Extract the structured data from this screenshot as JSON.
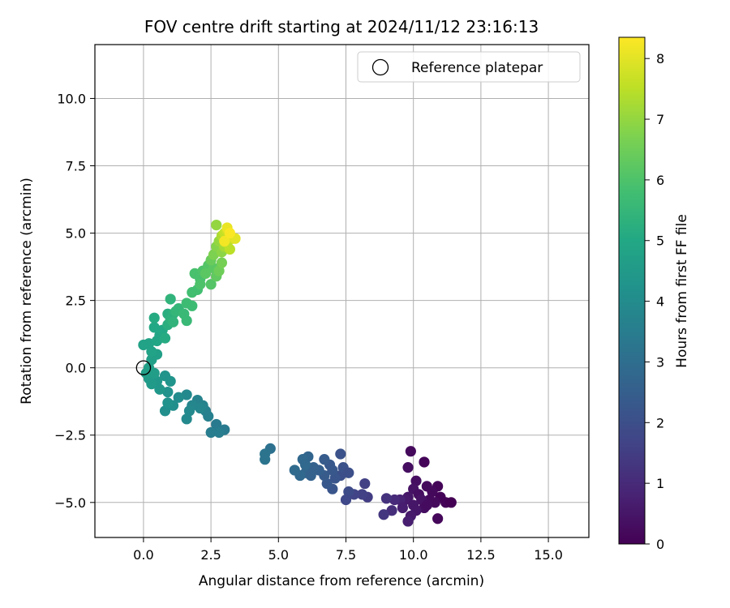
{
  "chart_data": {
    "type": "scatter",
    "title": "FOV centre drift starting at 2024/11/12 23:16:13",
    "xlabel": "Angular distance from reference (arcmin)",
    "ylabel": "Rotation from reference (arcmin)",
    "xlim": [
      -1.8,
      16.5
    ],
    "ylim": [
      -6.3,
      12.0
    ],
    "xticks": [
      0.0,
      2.5,
      5.0,
      7.5,
      10.0,
      12.5,
      15.0
    ],
    "xtick_labels": [
      "0.0",
      "2.5",
      "5.0",
      "7.5",
      "10.0",
      "12.5",
      "15.0"
    ],
    "yticks": [
      -5.0,
      -2.5,
      0.0,
      2.5,
      5.0,
      7.5,
      10.0
    ],
    "ytick_labels": [
      "−5.0",
      "−2.5",
      "0.0",
      "2.5",
      "5.0",
      "7.5",
      "10.0"
    ],
    "grid": true,
    "legend": {
      "placement": "upper-right",
      "entries": [
        "Reference platepar"
      ]
    },
    "reference_point": {
      "x": 0.0,
      "y": 0.0,
      "marker": "open-circle"
    },
    "colorbar": {
      "label": "Hours from first FF file",
      "colormap": "viridis",
      "range": [
        0,
        8.35
      ],
      "ticks": [
        0,
        1,
        2,
        3,
        4,
        5,
        6,
        7,
        8
      ],
      "tick_labels": [
        "0",
        "1",
        "2",
        "3",
        "4",
        "5",
        "6",
        "7",
        "8"
      ]
    },
    "points": [
      {
        "x": 9.9,
        "y": -3.1,
        "h": 0.2
      },
      {
        "x": 10.4,
        "y": -3.5,
        "h": 0.1
      },
      {
        "x": 9.8,
        "y": -3.7,
        "h": 0.3
      },
      {
        "x": 10.1,
        "y": -4.2,
        "h": 0.3
      },
      {
        "x": 10.5,
        "y": -4.4,
        "h": 0.2
      },
      {
        "x": 10.9,
        "y": -4.4,
        "h": 0.1
      },
      {
        "x": 10.0,
        "y": -4.5,
        "h": 0.4
      },
      {
        "x": 10.7,
        "y": -4.6,
        "h": 0.2
      },
      {
        "x": 10.2,
        "y": -4.7,
        "h": 0.3
      },
      {
        "x": 11.0,
        "y": -4.8,
        "h": 0.1
      },
      {
        "x": 9.8,
        "y": -4.8,
        "h": 0.5
      },
      {
        "x": 10.6,
        "y": -4.9,
        "h": 0.2
      },
      {
        "x": 10.3,
        "y": -4.9,
        "h": 0.4
      },
      {
        "x": 11.2,
        "y": -5.0,
        "h": 0.05
      },
      {
        "x": 11.4,
        "y": -5.0,
        "h": 0.0
      },
      {
        "x": 9.7,
        "y": -4.9,
        "h": 0.6
      },
      {
        "x": 10.0,
        "y": -5.1,
        "h": 0.5
      },
      {
        "x": 10.4,
        "y": -5.2,
        "h": 0.3
      },
      {
        "x": 10.8,
        "y": -5.0,
        "h": 0.2
      },
      {
        "x": 10.1,
        "y": -5.3,
        "h": 0.5
      },
      {
        "x": 9.9,
        "y": -5.5,
        "h": 0.6
      },
      {
        "x": 10.9,
        "y": -5.6,
        "h": 0.15
      },
      {
        "x": 9.8,
        "y": -5.7,
        "h": 0.7
      },
      {
        "x": 10.5,
        "y": -5.1,
        "h": 0.25
      },
      {
        "x": 9.5,
        "y": -4.9,
        "h": 0.8
      },
      {
        "x": 9.6,
        "y": -5.2,
        "h": 0.7
      },
      {
        "x": 9.3,
        "y": -4.9,
        "h": 1.0
      },
      {
        "x": 9.0,
        "y": -4.85,
        "h": 1.2
      },
      {
        "x": 9.2,
        "y": -5.3,
        "h": 1.1
      },
      {
        "x": 8.9,
        "y": -5.45,
        "h": 1.3
      },
      {
        "x": 8.3,
        "y": -4.8,
        "h": 1.5
      },
      {
        "x": 8.1,
        "y": -4.7,
        "h": 1.6
      },
      {
        "x": 7.8,
        "y": -4.7,
        "h": 1.7
      },
      {
        "x": 8.2,
        "y": -4.3,
        "h": 1.6
      },
      {
        "x": 7.6,
        "y": -4.6,
        "h": 1.9
      },
      {
        "x": 7.5,
        "y": -4.9,
        "h": 1.8
      },
      {
        "x": 7.3,
        "y": -4.0,
        "h": 2.0
      },
      {
        "x": 7.4,
        "y": -3.7,
        "h": 2.1
      },
      {
        "x": 7.6,
        "y": -3.9,
        "h": 2.0
      },
      {
        "x": 7.0,
        "y": -4.5,
        "h": 2.2
      },
      {
        "x": 6.8,
        "y": -4.3,
        "h": 2.3
      },
      {
        "x": 7.1,
        "y": -4.1,
        "h": 2.2
      },
      {
        "x": 6.7,
        "y": -4.0,
        "h": 2.4
      },
      {
        "x": 7.3,
        "y": -3.2,
        "h": 2.1
      },
      {
        "x": 6.9,
        "y": -3.6,
        "h": 2.3
      },
      {
        "x": 6.7,
        "y": -3.4,
        "h": 2.4
      },
      {
        "x": 7.0,
        "y": -3.8,
        "h": 2.3
      },
      {
        "x": 6.5,
        "y": -3.8,
        "h": 2.5
      },
      {
        "x": 6.3,
        "y": -3.7,
        "h": 2.6
      },
      {
        "x": 6.1,
        "y": -3.3,
        "h": 2.7
      },
      {
        "x": 5.9,
        "y": -3.4,
        "h": 2.8
      },
      {
        "x": 6.0,
        "y": -3.9,
        "h": 2.7
      },
      {
        "x": 5.8,
        "y": -4.0,
        "h": 2.8
      },
      {
        "x": 6.2,
        "y": -4.0,
        "h": 2.6
      },
      {
        "x": 5.6,
        "y": -3.8,
        "h": 2.9
      },
      {
        "x": 6.0,
        "y": -3.6,
        "h": 2.8
      },
      {
        "x": 4.7,
        "y": -3.0,
        "h": 3.1
      },
      {
        "x": 4.5,
        "y": -3.2,
        "h": 3.2
      },
      {
        "x": 4.5,
        "y": -3.4,
        "h": 3.2
      },
      {
        "x": 3.0,
        "y": -2.3,
        "h": 3.4
      },
      {
        "x": 2.7,
        "y": -2.1,
        "h": 3.4
      },
      {
        "x": 2.8,
        "y": -2.4,
        "h": 3.5
      },
      {
        "x": 2.5,
        "y": -2.4,
        "h": 3.5
      },
      {
        "x": 2.4,
        "y": -1.8,
        "h": 3.6
      },
      {
        "x": 2.3,
        "y": -1.6,
        "h": 3.6
      },
      {
        "x": 2.2,
        "y": -1.4,
        "h": 3.7
      },
      {
        "x": 2.0,
        "y": -1.2,
        "h": 3.7
      },
      {
        "x": 2.1,
        "y": -1.5,
        "h": 3.8
      },
      {
        "x": 1.8,
        "y": -1.4,
        "h": 3.8
      },
      {
        "x": 1.6,
        "y": -1.0,
        "h": 3.9
      },
      {
        "x": 1.7,
        "y": -1.6,
        "h": 3.9
      },
      {
        "x": 1.6,
        "y": -1.9,
        "h": 3.9
      },
      {
        "x": 1.3,
        "y": -1.1,
        "h": 4.0
      },
      {
        "x": 1.1,
        "y": -1.4,
        "h": 4.1
      },
      {
        "x": 0.9,
        "y": -0.9,
        "h": 4.2
      },
      {
        "x": 0.8,
        "y": -1.6,
        "h": 4.1
      },
      {
        "x": 0.9,
        "y": -1.3,
        "h": 4.2
      },
      {
        "x": 1.0,
        "y": -0.5,
        "h": 4.3
      },
      {
        "x": 0.8,
        "y": -0.3,
        "h": 4.3
      },
      {
        "x": 0.6,
        "y": -0.8,
        "h": 4.4
      },
      {
        "x": 0.5,
        "y": -0.5,
        "h": 4.4
      },
      {
        "x": 0.3,
        "y": -0.6,
        "h": 4.5
      },
      {
        "x": 0.2,
        "y": -0.4,
        "h": 4.5
      },
      {
        "x": 0.1,
        "y": -0.2,
        "h": 4.6
      },
      {
        "x": 0.4,
        "y": -0.2,
        "h": 4.6
      },
      {
        "x": 0.2,
        "y": 0.0,
        "h": 4.7
      },
      {
        "x": 0.3,
        "y": 0.3,
        "h": 4.7
      },
      {
        "x": 0.5,
        "y": 0.5,
        "h": 4.7
      },
      {
        "x": 0.3,
        "y": 0.6,
        "h": 4.8
      },
      {
        "x": 0.0,
        "y": 0.85,
        "h": 4.8
      },
      {
        "x": 0.2,
        "y": 0.9,
        "h": 4.8
      },
      {
        "x": 0.5,
        "y": 1.0,
        "h": 4.9
      },
      {
        "x": 0.6,
        "y": 1.2,
        "h": 4.9
      },
      {
        "x": 0.4,
        "y": 1.5,
        "h": 5.0
      },
      {
        "x": 0.7,
        "y": 1.4,
        "h": 5.0
      },
      {
        "x": 0.8,
        "y": 1.1,
        "h": 5.1
      },
      {
        "x": 0.4,
        "y": 1.85,
        "h": 5.1
      },
      {
        "x": 0.9,
        "y": 1.6,
        "h": 5.2
      },
      {
        "x": 0.9,
        "y": 2.0,
        "h": 5.2
      },
      {
        "x": 1.0,
        "y": 1.8,
        "h": 5.3
      },
      {
        "x": 1.1,
        "y": 2.0,
        "h": 5.3
      },
      {
        "x": 1.0,
        "y": 2.55,
        "h": 5.4
      },
      {
        "x": 1.1,
        "y": 1.7,
        "h": 5.4
      },
      {
        "x": 1.2,
        "y": 2.1,
        "h": 5.5
      },
      {
        "x": 1.3,
        "y": 2.2,
        "h": 5.5
      },
      {
        "x": 1.5,
        "y": 2.0,
        "h": 5.6
      },
      {
        "x": 1.6,
        "y": 1.75,
        "h": 5.6
      },
      {
        "x": 1.6,
        "y": 2.4,
        "h": 5.7
      },
      {
        "x": 1.8,
        "y": 2.3,
        "h": 5.7
      },
      {
        "x": 1.8,
        "y": 2.8,
        "h": 5.8
      },
      {
        "x": 2.0,
        "y": 2.9,
        "h": 5.8
      },
      {
        "x": 2.1,
        "y": 3.3,
        "h": 5.9
      },
      {
        "x": 1.9,
        "y": 3.5,
        "h": 5.9
      },
      {
        "x": 2.2,
        "y": 3.6,
        "h": 6.0
      },
      {
        "x": 2.1,
        "y": 3.1,
        "h": 6.0
      },
      {
        "x": 2.4,
        "y": 3.8,
        "h": 6.1
      },
      {
        "x": 2.5,
        "y": 3.1,
        "h": 6.1
      },
      {
        "x": 2.3,
        "y": 3.5,
        "h": 6.2
      },
      {
        "x": 2.6,
        "y": 3.7,
        "h": 6.2
      },
      {
        "x": 2.7,
        "y": 3.4,
        "h": 6.3
      },
      {
        "x": 2.5,
        "y": 4.0,
        "h": 6.4
      },
      {
        "x": 2.8,
        "y": 3.6,
        "h": 6.5
      },
      {
        "x": 2.9,
        "y": 3.9,
        "h": 6.6
      },
      {
        "x": 2.6,
        "y": 4.2,
        "h": 6.7
      },
      {
        "x": 2.7,
        "y": 4.5,
        "h": 6.8
      },
      {
        "x": 2.9,
        "y": 4.3,
        "h": 6.9
      },
      {
        "x": 2.8,
        "y": 4.7,
        "h": 7.0
      },
      {
        "x": 2.7,
        "y": 5.3,
        "h": 7.0
      },
      {
        "x": 3.0,
        "y": 4.5,
        "h": 7.2
      },
      {
        "x": 2.9,
        "y": 4.9,
        "h": 7.3
      },
      {
        "x": 3.1,
        "y": 4.6,
        "h": 7.4
      },
      {
        "x": 3.2,
        "y": 4.4,
        "h": 7.5
      },
      {
        "x": 3.0,
        "y": 5.0,
        "h": 7.6
      },
      {
        "x": 3.3,
        "y": 4.8,
        "h": 7.7
      },
      {
        "x": 3.1,
        "y": 5.1,
        "h": 7.8
      },
      {
        "x": 3.2,
        "y": 4.9,
        "h": 7.9
      },
      {
        "x": 3.4,
        "y": 4.8,
        "h": 8.0
      },
      {
        "x": 3.1,
        "y": 5.2,
        "h": 8.1
      },
      {
        "x": 3.0,
        "y": 4.7,
        "h": 8.2
      },
      {
        "x": 3.2,
        "y": 5.0,
        "h": 8.3
      }
    ]
  }
}
